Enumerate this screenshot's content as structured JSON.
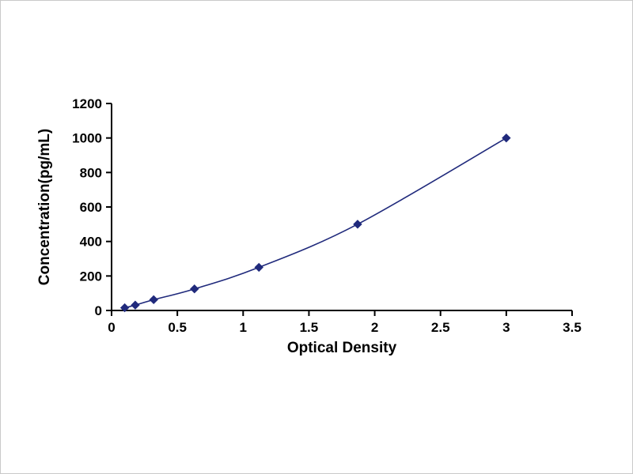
{
  "chart_data": {
    "type": "line",
    "title": "",
    "xlabel": "Optical Density",
    "ylabel": "Concentration(pg/mL)",
    "x": [
      0.1,
      0.18,
      0.32,
      0.63,
      1.12,
      1.87,
      3.0
    ],
    "y": [
      15.6,
      31.2,
      62.5,
      125,
      250,
      500,
      1000
    ],
    "xlim": [
      0,
      3.5
    ],
    "ylim": [
      0,
      1200
    ],
    "xticks": [
      0,
      0.5,
      1,
      1.5,
      2,
      2.5,
      3,
      3.5
    ],
    "yticks": [
      0,
      200,
      400,
      600,
      800,
      1000,
      1200
    ],
    "grid": false,
    "legend": "none",
    "line_color": "#202A7C",
    "marker": "diamond",
    "marker_color": "#202A7C",
    "axis_color": "#000000",
    "tick_label_color": "#000000"
  }
}
